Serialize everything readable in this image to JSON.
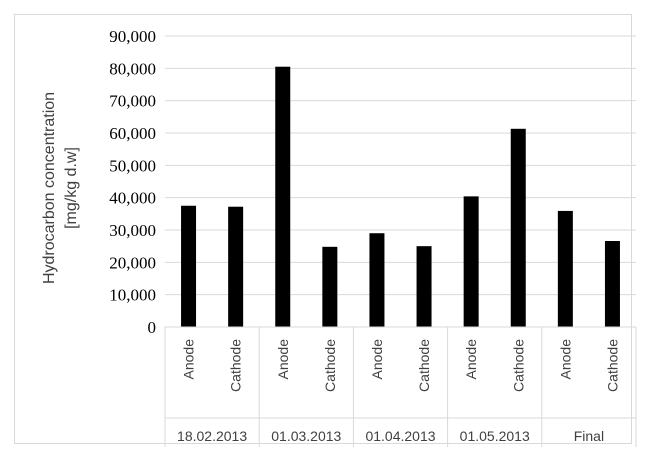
{
  "chart_data": {
    "type": "bar",
    "title": "",
    "ylabel_lines": [
      "Hydrocarbon concentration",
      "[mg/kg d.w]"
    ],
    "ylim": [
      0,
      90000
    ],
    "yticks": [
      "0",
      "10,000",
      "20,000",
      "30,000",
      "40,000",
      "50,000",
      "60,000",
      "70,000",
      "80,000",
      "90,000"
    ],
    "categories": [
      "Anode",
      "Cathode",
      "Anode",
      "Cathode",
      "Anode",
      "Cathode",
      "Anode",
      "Cathode",
      "Anode",
      "Cathode"
    ],
    "groups": [
      "18.02.2013",
      "01.03.2013",
      "01.04.2013",
      "01.05.2013",
      "Final"
    ],
    "values": [
      37500,
      37200,
      80500,
      24800,
      29000,
      25000,
      40400,
      61300,
      35900,
      26600
    ],
    "bar_color": "#000000",
    "grid": true
  }
}
